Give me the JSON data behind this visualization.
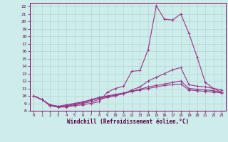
{
  "xlabel": "Windchill (Refroidissement éolien,°C)",
  "background_color": "#ceecea",
  "grid_color": "#b0d8d4",
  "line_color": "#993388",
  "xlim": [
    -0.5,
    23.5
  ],
  "ylim": [
    8,
    22.5
  ],
  "yticks": [
    8,
    9,
    10,
    11,
    12,
    13,
    14,
    15,
    16,
    17,
    18,
    19,
    20,
    21,
    22
  ],
  "xticks": [
    0,
    1,
    2,
    3,
    4,
    5,
    6,
    7,
    8,
    9,
    10,
    11,
    12,
    13,
    14,
    15,
    16,
    17,
    18,
    19,
    20,
    21,
    22,
    23
  ],
  "series": [
    [
      10.0,
      9.5,
      8.7,
      8.5,
      8.5,
      8.7,
      8.8,
      9.0,
      9.2,
      10.5,
      11.0,
      11.3,
      13.3,
      13.4,
      16.2,
      22.1,
      20.3,
      20.2,
      21.0,
      18.4,
      15.2,
      11.8,
      11.0,
      10.5
    ],
    [
      10.0,
      9.5,
      8.7,
      8.5,
      8.6,
      8.8,
      9.0,
      9.2,
      9.5,
      9.8,
      10.0,
      10.3,
      10.8,
      11.2,
      12.0,
      12.5,
      13.0,
      13.5,
      13.8,
      11.5,
      11.3,
      11.2,
      11.0,
      10.8
    ],
    [
      10.0,
      9.5,
      8.8,
      8.6,
      8.7,
      8.9,
      9.1,
      9.4,
      9.7,
      9.9,
      10.1,
      10.3,
      10.6,
      10.9,
      11.2,
      11.4,
      11.6,
      11.8,
      12.0,
      11.0,
      10.9,
      10.8,
      10.7,
      10.5
    ],
    [
      10.0,
      9.5,
      8.8,
      8.6,
      8.8,
      9.0,
      9.2,
      9.5,
      9.8,
      10.0,
      10.2,
      10.4,
      10.6,
      10.8,
      11.0,
      11.2,
      11.4,
      11.5,
      11.6,
      10.8,
      10.7,
      10.6,
      10.5,
      10.4
    ]
  ]
}
